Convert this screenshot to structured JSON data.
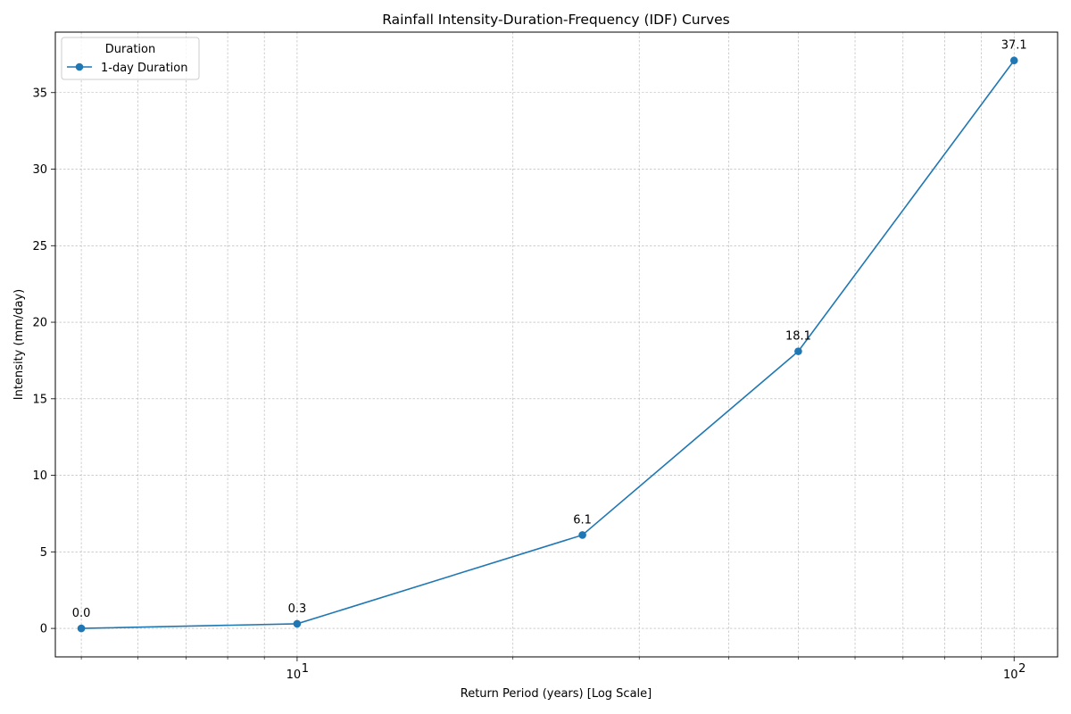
{
  "chart_data": {
    "type": "line",
    "title": "Rainfall Intensity-Duration-Frequency (IDF) Curves",
    "xlabel": "Return Period (years) [Log Scale]",
    "ylabel": "Intensity (mm/day)",
    "x_scale": "log",
    "x": [
      5,
      10,
      25,
      50,
      100
    ],
    "xlim": [
      4.6,
      115
    ],
    "ylim": [
      -1.86,
      38.95
    ],
    "yticks": [
      0,
      5,
      10,
      15,
      20,
      25,
      30,
      35
    ],
    "xticks_major": [
      10,
      100
    ],
    "xtick_labels": [
      {
        "base": "10",
        "exp": "1"
      },
      {
        "base": "10",
        "exp": "2"
      }
    ],
    "grid": true,
    "legend": {
      "title": "Duration",
      "placement": "top-left"
    },
    "series": [
      {
        "name": "1-day Duration",
        "values": [
          0.0,
          0.3,
          6.1,
          18.1,
          37.1
        ],
        "labels": [
          "0.0",
          "0.3",
          "6.1",
          "18.1",
          "37.1"
        ],
        "color": "#1f77b4"
      }
    ]
  }
}
